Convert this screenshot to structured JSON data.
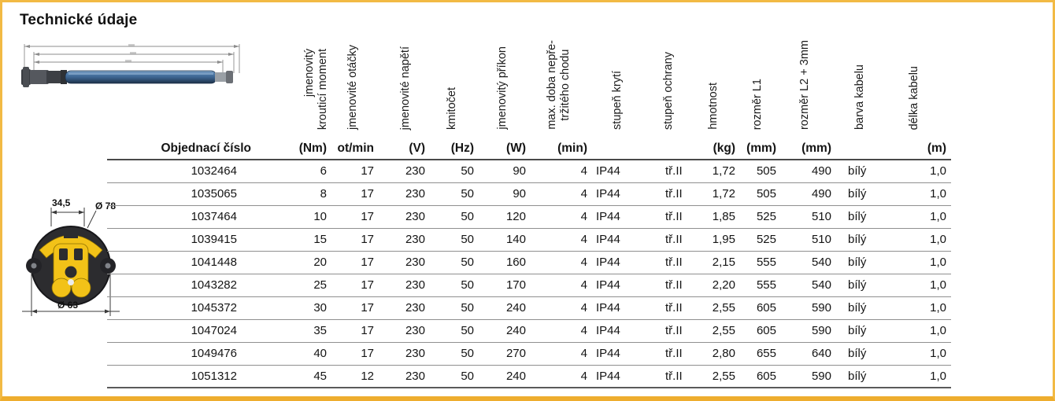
{
  "title": "Technické údaje",
  "colors": {
    "frame_border": "#F2BA44",
    "frame_border_bottom": "#EEAD2E",
    "crown_yellow": "#F2C218",
    "tube_blue": "#3F6A99",
    "row_line": "#8F8F8F",
    "strong_line": "#4A4A4A"
  },
  "diagrams": {
    "crown": {
      "dim_width": "34,5",
      "dim_outer_diameter": "Ø 78",
      "dim_inner_diameter": "Ø 63"
    }
  },
  "table": {
    "headers": [
      {
        "label": "",
        "unit": "Objednací číslo"
      },
      {
        "label": "jmenovitý\nkrouticí moment",
        "unit": "(Nm)"
      },
      {
        "label": "jmenovité otáčky",
        "unit": "ot/min"
      },
      {
        "label": "jmenovité napětí",
        "unit": "(V)"
      },
      {
        "label": "kmitočet",
        "unit": "(Hz)"
      },
      {
        "label": "jmenovitý příkon",
        "unit": "(W)"
      },
      {
        "label": "max. doba nepře-\ntržitého chodu",
        "unit": "(min)"
      },
      {
        "label": "stupeň krytí",
        "unit": ""
      },
      {
        "label": "stupeň ochrany",
        "unit": ""
      },
      {
        "label": "hmotnost",
        "unit": "(kg)"
      },
      {
        "label": "rozměr L1",
        "unit": "(mm)"
      },
      {
        "label": "rozměr L2 + 3mm",
        "unit": "(mm)"
      },
      {
        "label": "barva kabelu",
        "unit": ""
      },
      {
        "label": "délka kabelu",
        "unit": "(m)"
      }
    ],
    "rows": [
      [
        "1032464",
        "6",
        "17",
        "230",
        "50",
        "90",
        "4",
        "IP44",
        "tř.II",
        "1,72",
        "505",
        "490",
        "bílý",
        "1,0"
      ],
      [
        "1035065",
        "8",
        "17",
        "230",
        "50",
        "90",
        "4",
        "IP44",
        "tř.II",
        "1,72",
        "505",
        "490",
        "bílý",
        "1,0"
      ],
      [
        "1037464",
        "10",
        "17",
        "230",
        "50",
        "120",
        "4",
        "IP44",
        "tř.II",
        "1,85",
        "525",
        "510",
        "bílý",
        "1,0"
      ],
      [
        "1039415",
        "15",
        "17",
        "230",
        "50",
        "140",
        "4",
        "IP44",
        "tř.II",
        "1,95",
        "525",
        "510",
        "bílý",
        "1,0"
      ],
      [
        "1041448",
        "20",
        "17",
        "230",
        "50",
        "160",
        "4",
        "IP44",
        "tř.II",
        "2,15",
        "555",
        "540",
        "bílý",
        "1,0"
      ],
      [
        "1043282",
        "25",
        "17",
        "230",
        "50",
        "170",
        "4",
        "IP44",
        "tř.II",
        "2,20",
        "555",
        "540",
        "bílý",
        "1,0"
      ],
      [
        "1045372",
        "30",
        "17",
        "230",
        "50",
        "240",
        "4",
        "IP44",
        "tř.II",
        "2,55",
        "605",
        "590",
        "bílý",
        "1,0"
      ],
      [
        "1047024",
        "35",
        "17",
        "230",
        "50",
        "240",
        "4",
        "IP44",
        "tř.II",
        "2,55",
        "605",
        "590",
        "bílý",
        "1,0"
      ],
      [
        "1049476",
        "40",
        "17",
        "230",
        "50",
        "270",
        "4",
        "IP44",
        "tř.II",
        "2,80",
        "655",
        "640",
        "bílý",
        "1,0"
      ],
      [
        "1051312",
        "45",
        "12",
        "230",
        "50",
        "240",
        "4",
        "IP44",
        "tř.II",
        "2,55",
        "605",
        "590",
        "bílý",
        "1,0"
      ]
    ]
  }
}
